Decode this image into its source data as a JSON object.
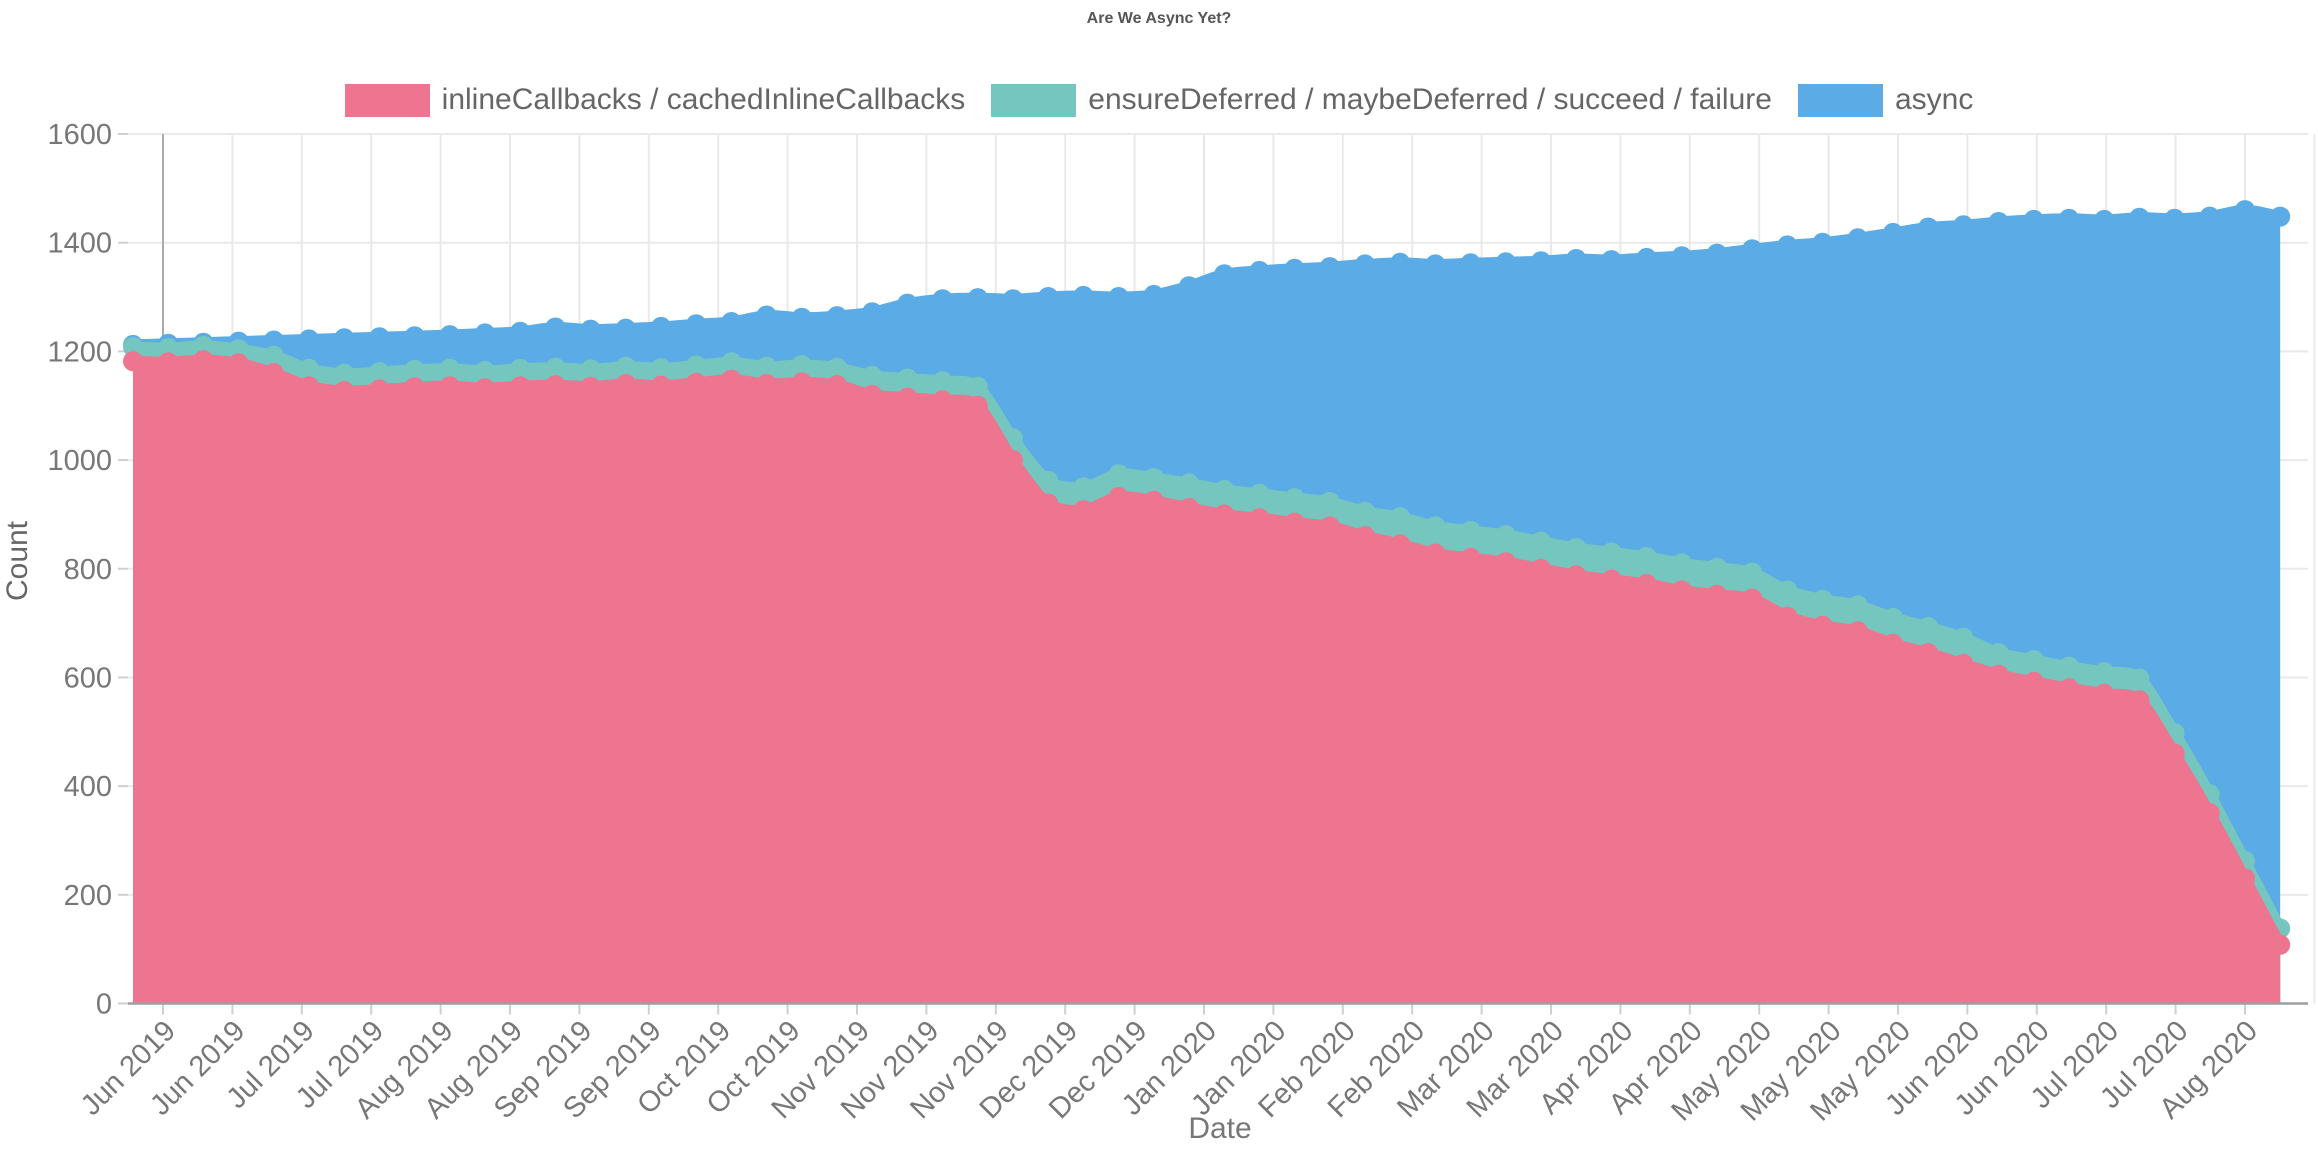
{
  "chart_data": {
    "type": "area",
    "stacked": true,
    "title": "Are We Async Yet?",
    "xlabel": "Date",
    "ylabel": "Count",
    "ylim": [
      0,
      1600
    ],
    "y_ticks": [
      0,
      200,
      400,
      600,
      800,
      1000,
      1200,
      1400,
      1600
    ],
    "grid": true,
    "legend_position": "top",
    "x_tick_labels": [
      "Jun 2019",
      "Jun 2019",
      "Jul 2019",
      "Jul 2019",
      "Aug 2019",
      "Aug 2019",
      "Sep 2019",
      "Sep 2019",
      "Oct 2019",
      "Oct 2019",
      "Nov 2019",
      "Nov 2019",
      "Nov 2019",
      "Dec 2019",
      "Dec 2019",
      "Jan 2020",
      "Jan 2020",
      "Feb 2020",
      "Feb 2020",
      "Mar 2020",
      "Mar 2020",
      "Apr 2020",
      "Apr 2020",
      "May 2020",
      "May 2020",
      "May 2020",
      "Jun 2020",
      "Jun 2020",
      "Jul 2020",
      "Jul 2020",
      "Aug 2020"
    ],
    "x_sampling": "weekly",
    "series": [
      {
        "name": "inlineCallbacks / cachedInlineCallbacks",
        "color": "#ED7590",
        "values": [
          1182,
          1180,
          1184,
          1178,
          1160,
          1136,
          1127,
          1130,
          1134,
          1136,
          1132,
          1136,
          1138,
          1135,
          1140,
          1137,
          1142,
          1148,
          1140,
          1143,
          1138,
          1120,
          1115,
          1110,
          1100,
          1000,
          920,
          908,
          932,
          925,
          912,
          900,
          893,
          885,
          878,
          860,
          845,
          828,
          820,
          812,
          800,
          788,
          780,
          772,
          760,
          752,
          745,
          712,
          695,
          685,
          662,
          645,
          625,
          605,
          592,
          580,
          570,
          558,
          460,
          350,
          230,
          108
        ]
      },
      {
        "name": "ensureDeferred / maybeDeferred / succeed / failure",
        "color": "#74C6BF",
        "values": [
          26,
          26,
          26,
          26,
          32,
          32,
          32,
          32,
          32,
          32,
          32,
          32,
          32,
          32,
          32,
          32,
          32,
          32,
          32,
          32,
          32,
          35,
          35,
          35,
          35,
          40,
          42,
          42,
          42,
          42,
          45,
          45,
          45,
          45,
          45,
          45,
          50,
          50,
          50,
          50,
          50,
          50,
          50,
          50,
          50,
          50,
          48,
          48,
          48,
          48,
          48,
          48,
          48,
          40,
          40,
          40,
          40,
          40,
          38,
          35,
          32,
          30
        ]
      },
      {
        "name": "async",
        "color": "#5AABE6",
        "values": [
          4,
          8,
          6,
          14,
          28,
          54,
          65,
          64,
          62,
          62,
          69,
          68,
          74,
          73,
          70,
          76,
          76,
          74,
          94,
          87,
          95,
          117,
          138,
          151,
          163,
          256,
          338,
          352,
          326,
          337,
          363,
          397,
          410,
          422,
          432,
          455,
          468,
          482,
          492,
          502,
          516,
          532,
          538,
          550,
          565,
          578,
          595,
          635,
          657,
          675,
          708,
          735,
          759,
          793,
          810,
          824,
          832,
          848,
          946,
          1063,
          1198,
          1310
        ]
      }
    ]
  },
  "style_colors": {
    "grid": "#e9e9e9",
    "first_gridline": "#aaaaaa",
    "axis_line": "#9e9e9e",
    "tick_text": "#777777",
    "title_text": "#555555",
    "legend_text": "#666666"
  }
}
